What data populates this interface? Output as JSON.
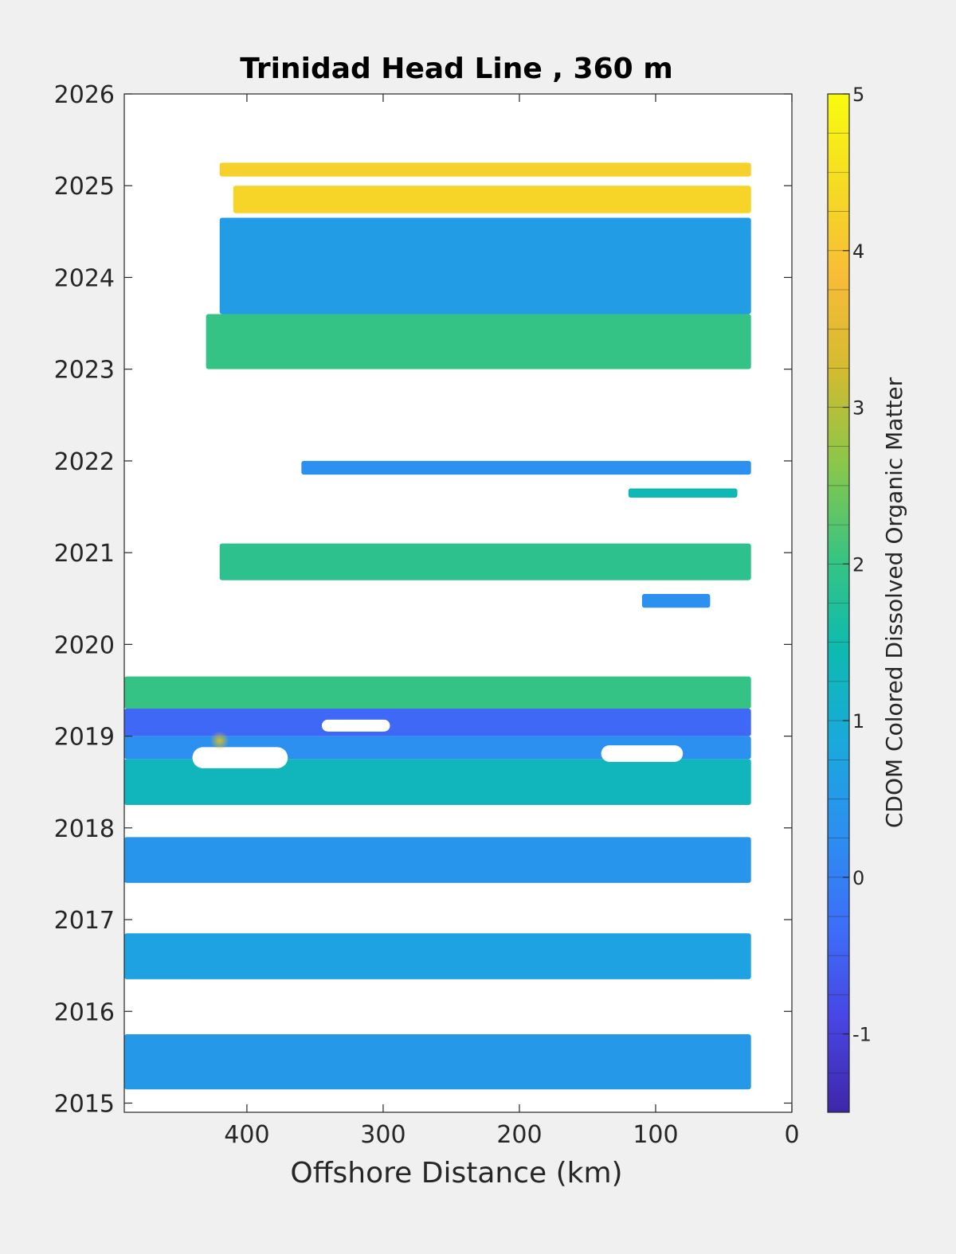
{
  "chart_data": {
    "type": "heatmap",
    "title": "Trinidad Head Line , 360 m",
    "xlabel": "Offshore Distance (km)",
    "ylabel": "",
    "xlim": [
      490,
      0
    ],
    "x_reversed": true,
    "xticks": [
      400,
      300,
      200,
      100,
      0
    ],
    "ylim": [
      2014.9,
      2026
    ],
    "yticks": [
      2015,
      2016,
      2017,
      2018,
      2019,
      2020,
      2021,
      2022,
      2023,
      2024,
      2025,
      2026
    ],
    "grid": false,
    "colorbar": {
      "label": "CDOM Colored Dissolved Organic Matter",
      "range": [
        -1.5,
        5
      ],
      "ticks": [
        -1,
        0,
        1,
        2,
        3,
        4,
        5
      ],
      "colormap": "parula",
      "stops": [
        "#3e26a8",
        "#4845e3",
        "#3d6ef9",
        "#2c8ff0",
        "#1aa9dc",
        "#0dbab0",
        "#38c481",
        "#8ac64a",
        "#d2bb30",
        "#f8bb37",
        "#f5db24",
        "#f9fb0e"
      ]
    },
    "bands": [
      {
        "t0": 2025.1,
        "t1": 2025.25,
        "x_far": 420,
        "x_near": 30,
        "value": 4.2
      },
      {
        "t0": 2024.7,
        "t1": 2025.0,
        "x_far": 410,
        "x_near": 30,
        "value": 4.3
      },
      {
        "t0": 2023.6,
        "t1": 2024.65,
        "x_far": 420,
        "x_near": 30,
        "value": 0.6
      },
      {
        "t0": 2023.0,
        "t1": 2023.6,
        "x_far": 430,
        "x_near": 30,
        "value": 2.0
      },
      {
        "t0": 2021.85,
        "t1": 2022.0,
        "x_far": 360,
        "x_near": 30,
        "value": 0.3
      },
      {
        "t0": 2021.6,
        "t1": 2021.7,
        "x_far": 120,
        "x_near": 40,
        "value": 1.4
      },
      {
        "t0": 2020.7,
        "t1": 2021.1,
        "x_far": 420,
        "x_near": 30,
        "value": 1.9
      },
      {
        "t0": 2020.4,
        "t1": 2020.55,
        "x_far": 110,
        "x_near": 60,
        "value": 0.3
      },
      {
        "t0": 2019.3,
        "t1": 2019.65,
        "x_far": 490,
        "x_near": 30,
        "value": 2.0
      },
      {
        "t0": 2019.0,
        "t1": 2019.3,
        "x_far": 490,
        "x_near": 30,
        "value": -0.4
      },
      {
        "t0": 2018.75,
        "t1": 2019.0,
        "x_far": 490,
        "x_near": 30,
        "value": 0.3
      },
      {
        "t0": 2018.25,
        "t1": 2018.75,
        "x_far": 490,
        "x_near": 30,
        "value": 1.3
      },
      {
        "t0": 2017.4,
        "t1": 2017.9,
        "x_far": 490,
        "x_near": 30,
        "value": 0.4
      },
      {
        "t0": 2016.35,
        "t1": 2016.85,
        "x_far": 490,
        "x_near": 30,
        "value": 0.7
      },
      {
        "t0": 2015.15,
        "t1": 2015.75,
        "x_far": 490,
        "x_near": 30,
        "value": 0.5
      }
    ],
    "gaps": [
      {
        "t0": 2018.65,
        "t1": 2018.88,
        "x_far": 440,
        "x_near": 370
      },
      {
        "t0": 2018.72,
        "t1": 2018.9,
        "x_far": 140,
        "x_near": 80
      },
      {
        "t0": 2019.05,
        "t1": 2019.18,
        "x_far": 345,
        "x_near": 295
      }
    ],
    "annotations": [
      {
        "x": 420,
        "t": 2018.95,
        "value": 3.5
      }
    ]
  }
}
